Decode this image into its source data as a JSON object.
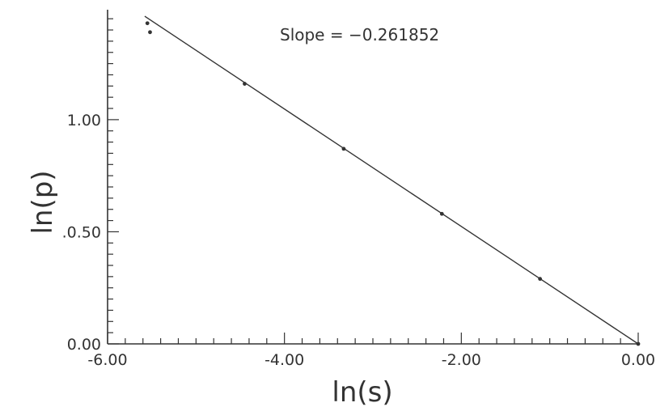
{
  "chart_data": {
    "type": "scatter",
    "xlabel": "ln(s)",
    "ylabel": "ln(p)",
    "xlim": [
      -6.0,
      0.0
    ],
    "ylim": [
      0.0,
      1.5
    ],
    "x_ticks": [
      "-6.00",
      "-4.00",
      "-2.00",
      "0.00"
    ],
    "y_ticks": [
      "0.00",
      ".0.50",
      "1.00"
    ],
    "grid": false,
    "annotation": "Slope = −0.261852",
    "points": [
      {
        "x": -5.55,
        "y": 1.43
      },
      {
        "x": -5.52,
        "y": 1.39
      },
      {
        "x": -4.45,
        "y": 1.16
      },
      {
        "x": -3.33,
        "y": 0.87
      },
      {
        "x": -2.22,
        "y": 0.58
      },
      {
        "x": -1.11,
        "y": 0.29
      },
      {
        "x": 0.0,
        "y": 0.0
      }
    ],
    "fit_line": {
      "slope": -0.261852,
      "x_from": -5.58,
      "x_to": 0.0
    },
    "color": "#333333"
  }
}
